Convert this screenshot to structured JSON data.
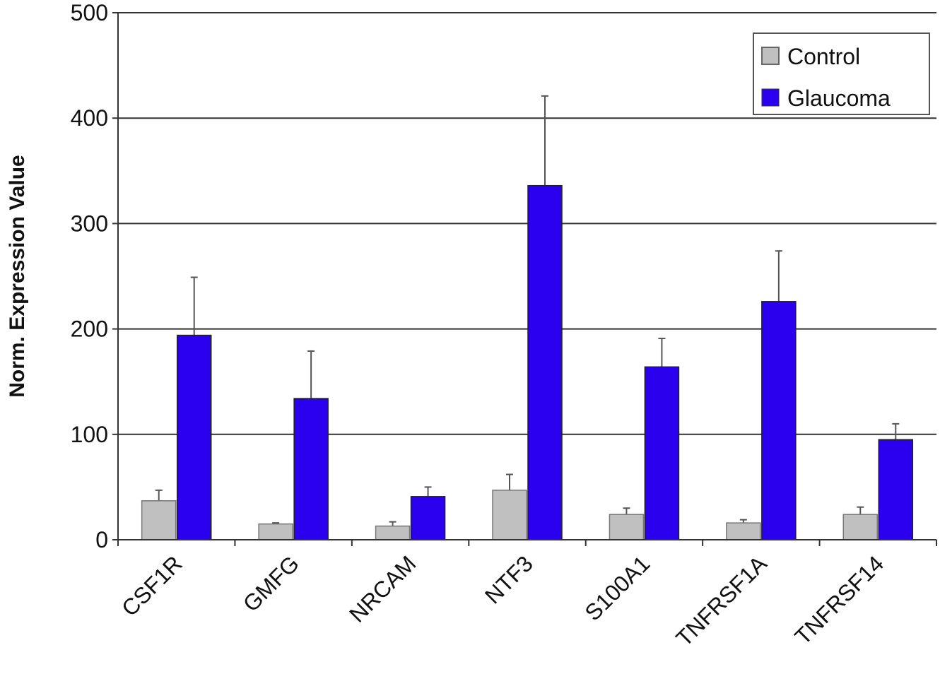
{
  "chart_data": {
    "type": "bar",
    "title": "",
    "xlabel": "",
    "ylabel": "Norm. Expression Value",
    "ylim": [
      0,
      500
    ],
    "yticks": [
      0,
      100,
      200,
      300,
      400,
      500
    ],
    "grid": true,
    "legend_position": "top-right",
    "categories": [
      "CSF1R",
      "GMFG",
      "NRCAM",
      "NTF3",
      "S100A1",
      "TNFRSF1A",
      "TNFRSF14"
    ],
    "series": [
      {
        "name": "Control",
        "color": "#c0c0c0",
        "values": [
          37,
          15,
          13,
          47,
          24,
          16,
          24
        ],
        "error_upper": [
          47,
          16,
          17,
          62,
          30,
          19,
          31
        ]
      },
      {
        "name": "Glaucoma",
        "color": "#2a00ee",
        "values": [
          194,
          134,
          41,
          336,
          164,
          226,
          95
        ],
        "error_upper": [
          249,
          179,
          50,
          421,
          191,
          274,
          110
        ]
      }
    ]
  }
}
